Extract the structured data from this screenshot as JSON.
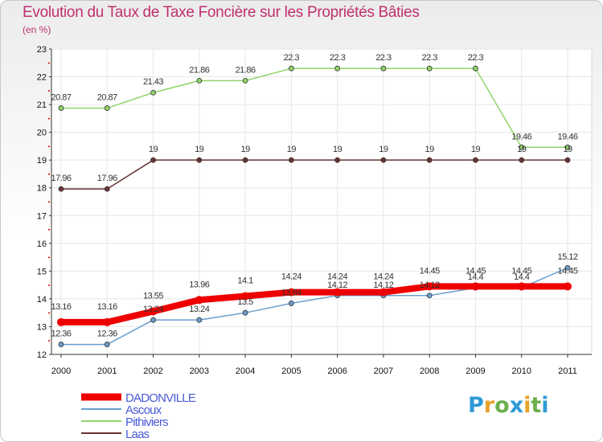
{
  "chart_data": {
    "type": "line",
    "title": "Evolution du Taux de Taxe Foncière sur les Propriétés Bâties",
    "subtitle": "(en %)",
    "xlabel": "",
    "ylabel": "",
    "ylim": [
      12,
      23
    ],
    "yticks": [
      12,
      13,
      14,
      15,
      16,
      17,
      18,
      19,
      20,
      21,
      22,
      23
    ],
    "categories": [
      "2000",
      "2001",
      "2002",
      "2003",
      "2004",
      "2005",
      "2006",
      "2007",
      "2008",
      "2009",
      "2010",
      "2011"
    ],
    "series": [
      {
        "name": "DADONVILLE",
        "color": "#ee0000",
        "values": [
          13.16,
          13.16,
          13.55,
          13.96,
          14.1,
          14.24,
          14.24,
          14.24,
          14.45,
          14.45,
          14.45,
          14.45
        ],
        "labels": [
          "13.16",
          "13.16",
          "13.55",
          "13.96",
          "14.1",
          "14.24",
          "14.24",
          "14.24",
          "14.45",
          "14.45",
          "14.45",
          "14.45"
        ]
      },
      {
        "name": "Ascoux",
        "color": "#6a9fcf",
        "values": [
          12.36,
          12.36,
          13.24,
          13.24,
          13.5,
          13.84,
          14.12,
          14.12,
          14.12,
          14.4,
          14.4,
          15.12
        ],
        "labels": [
          "12.36",
          "12.36",
          "13.24",
          "13.24",
          "13.5",
          "13.84",
          "14.12",
          "14.12",
          "14.12",
          "14.4",
          "14.4",
          "15.12"
        ]
      },
      {
        "name": "Pithiviers",
        "color": "#8fd46a",
        "values": [
          20.87,
          20.87,
          21.43,
          21.86,
          21.86,
          22.3,
          22.3,
          22.3,
          22.3,
          22.3,
          19.46,
          19.46
        ],
        "labels": [
          "20.87",
          "20.87",
          "21.43",
          "21.86",
          "21.86",
          "22.3",
          "22.3",
          "22.3",
          "22.3",
          "22.3",
          "19.46",
          "19.46"
        ]
      },
      {
        "name": "Laas",
        "color": "#6b3333",
        "values": [
          17.96,
          17.96,
          19,
          19,
          19,
          19,
          19,
          19,
          19,
          19,
          19,
          19
        ],
        "labels": [
          "17.96",
          "17.96",
          "19",
          "19",
          "19",
          "19",
          "19",
          "19",
          "19",
          "19",
          "19",
          "19"
        ]
      }
    ],
    "legend": [
      "DADONVILLE",
      "Ascoux",
      "Pithiviers",
      "Laas"
    ]
  },
  "logo": {
    "letters": [
      "P",
      "r",
      "o",
      "x",
      "i",
      "t",
      "i"
    ],
    "colors": [
      "#2e9bd6",
      "#e8a22a",
      "#6ab04c",
      "#2e9bd6",
      "#e8a22a",
      "#6ab04c",
      "#2e9bd6"
    ]
  }
}
